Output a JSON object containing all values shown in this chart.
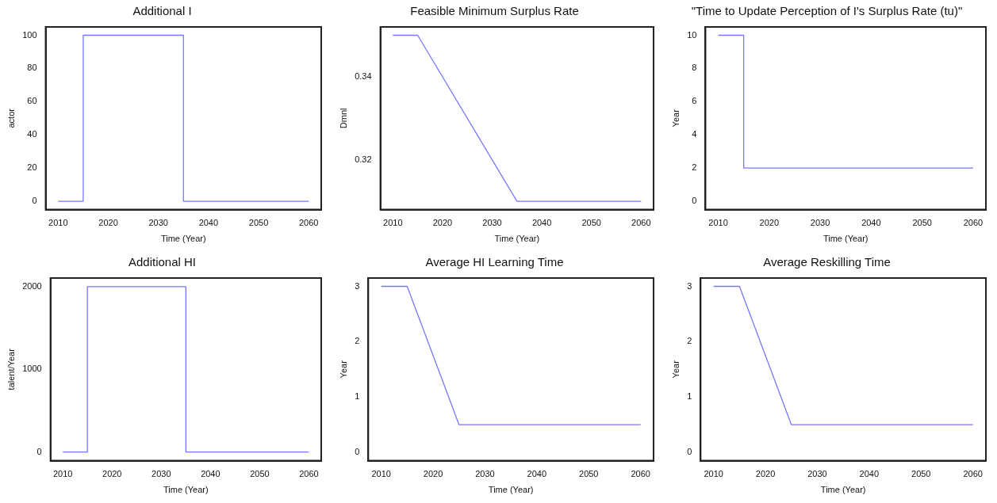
{
  "chart_data": [
    {
      "type": "line",
      "title": "Additional I",
      "xlabel": "Time (Year)",
      "ylabel": "actor",
      "series": [
        {
          "color": "#7777ff",
          "x": [
            2010,
            2015,
            2015,
            2035,
            2035,
            2060
          ],
          "values": [
            0,
            0,
            100,
            100,
            0,
            0
          ]
        }
      ],
      "xlim": [
        2007.5,
        2062.5
      ],
      "xticks": [
        2010,
        2020,
        2030,
        2040,
        2050,
        2060
      ],
      "ylim": [
        -5,
        105
      ],
      "yticks": [
        0,
        20,
        40,
        60,
        80,
        100
      ],
      "grid": false,
      "legend": false,
      "marker": "none"
    },
    {
      "type": "line",
      "title": "Feasible Minimum Surplus Rate",
      "xlabel": "Time (Year)",
      "ylabel": "Dmnl",
      "series": [
        {
          "color": "#7777ff",
          "x": [
            2010,
            2015,
            2035,
            2060
          ],
          "values": [
            0.35,
            0.35,
            0.31,
            0.31
          ]
        }
      ],
      "xlim": [
        2007.5,
        2062.5
      ],
      "xticks": [
        2010,
        2020,
        2030,
        2040,
        2050,
        2060
      ],
      "ylim": [
        0.308,
        0.352
      ],
      "yticks": [
        0.32,
        0.34
      ],
      "grid": false,
      "legend": false,
      "marker": "none"
    },
    {
      "type": "line",
      "title": "\"Time to Update Perception of I's Surplus Rate (tu)\"",
      "xlabel": "Time (Year)",
      "ylabel": "Year",
      "series": [
        {
          "color": "#7777ff",
          "x": [
            2010,
            2015,
            2015,
            2060
          ],
          "values": [
            10,
            10,
            2,
            2
          ]
        }
      ],
      "xlim": [
        2007.5,
        2062.5
      ],
      "xticks": [
        2010,
        2020,
        2030,
        2040,
        2050,
        2060
      ],
      "ylim": [
        -0.5,
        10.5
      ],
      "yticks": [
        0,
        2,
        4,
        6,
        8,
        10
      ],
      "grid": false,
      "legend": false,
      "marker": "none"
    },
    {
      "type": "line",
      "title": "Additional HI",
      "xlabel": "Time (Year)",
      "ylabel": "talent/Year",
      "series": [
        {
          "color": "#7777ff",
          "x": [
            2010,
            2015,
            2015,
            2035,
            2035,
            2060
          ],
          "values": [
            0,
            0,
            2000,
            2000,
            0,
            0
          ]
        }
      ],
      "xlim": [
        2007.5,
        2062.5
      ],
      "xticks": [
        2010,
        2020,
        2030,
        2040,
        2050,
        2060
      ],
      "ylim": [
        -105,
        2105
      ],
      "yticks": [
        0,
        1000,
        2000
      ],
      "grid": false,
      "legend": false,
      "marker": "none"
    },
    {
      "type": "line",
      "title": "Average HI Learning Time",
      "xlabel": "Time (Year)",
      "ylabel": "Year",
      "series": [
        {
          "color": "#7777ff",
          "x": [
            2010,
            2015,
            2025,
            2060
          ],
          "values": [
            3,
            3,
            0.5,
            0.5
          ]
        }
      ],
      "xlim": [
        2007.5,
        2062.5
      ],
      "xticks": [
        2010,
        2020,
        2030,
        2040,
        2050,
        2060
      ],
      "ylim": [
        -0.15,
        3.15
      ],
      "yticks": [
        0,
        1,
        2,
        3
      ],
      "grid": false,
      "legend": false,
      "marker": "none"
    },
    {
      "type": "line",
      "title": "Average Reskilling Time",
      "xlabel": "Time (Year)",
      "ylabel": "Year",
      "series": [
        {
          "color": "#7777ff",
          "x": [
            2010,
            2015,
            2025,
            2060
          ],
          "values": [
            3,
            3,
            0.5,
            0.5
          ]
        }
      ],
      "xlim": [
        2007.5,
        2062.5
      ],
      "xticks": [
        2010,
        2020,
        2030,
        2040,
        2050,
        2060
      ],
      "ylim": [
        -0.15,
        3.15
      ],
      "yticks": [
        0,
        1,
        2,
        3
      ],
      "grid": false,
      "legend": false,
      "marker": "none"
    }
  ]
}
